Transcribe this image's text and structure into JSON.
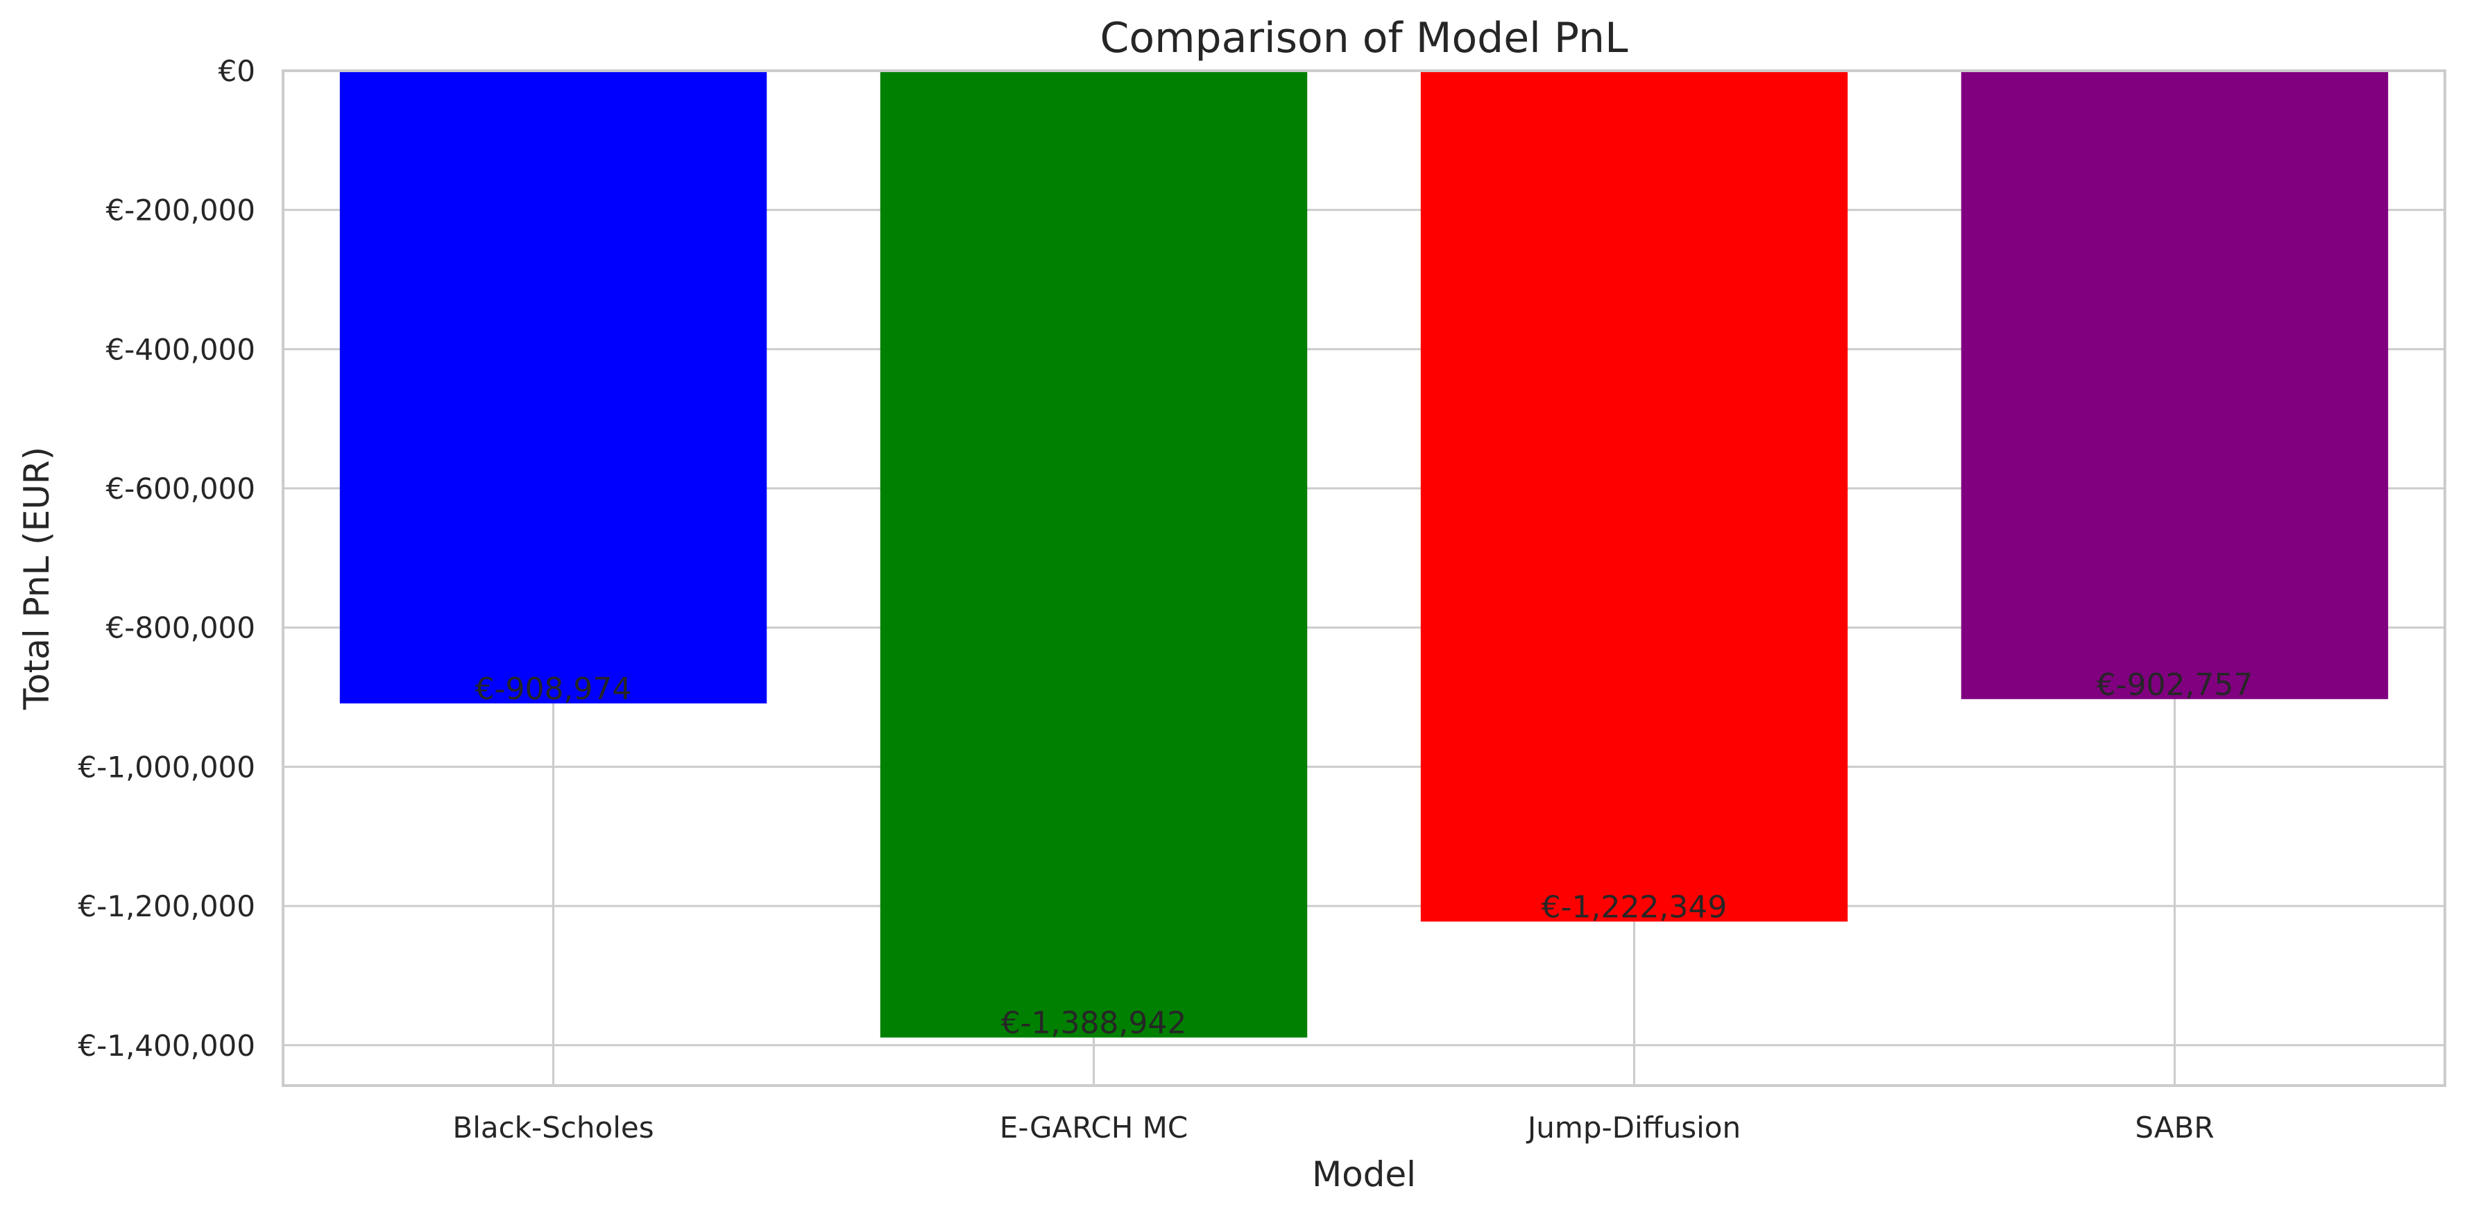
{
  "chart_data": {
    "type": "bar",
    "title": "Comparison of Model PnL",
    "xlabel": "Model",
    "ylabel": "Total PnL (EUR)",
    "categories": [
      "Black-Scholes",
      "E-GARCH MC",
      "Jump-Diffusion",
      "SABR"
    ],
    "values": [
      -908974,
      -1388942,
      -1222349,
      -902757
    ],
    "value_labels": [
      "€-908,974",
      "€-1,388,942",
      "€-1,222,349",
      "€-902,757"
    ],
    "colors": [
      "#0000ff",
      "#008000",
      "#ff0000",
      "#800080"
    ],
    "ylim": [
      -1458000,
      0
    ],
    "yticks": [
      0,
      -200000,
      -400000,
      -600000,
      -800000,
      -1000000,
      -1200000,
      -1400000
    ],
    "ytick_labels": [
      "€0",
      "€-200,000",
      "€-400,000",
      "€-600,000",
      "€-800,000",
      "€-1,000,000",
      "€-1,200,000",
      "€-1,400,000"
    ],
    "grid": true,
    "legend": "none"
  }
}
